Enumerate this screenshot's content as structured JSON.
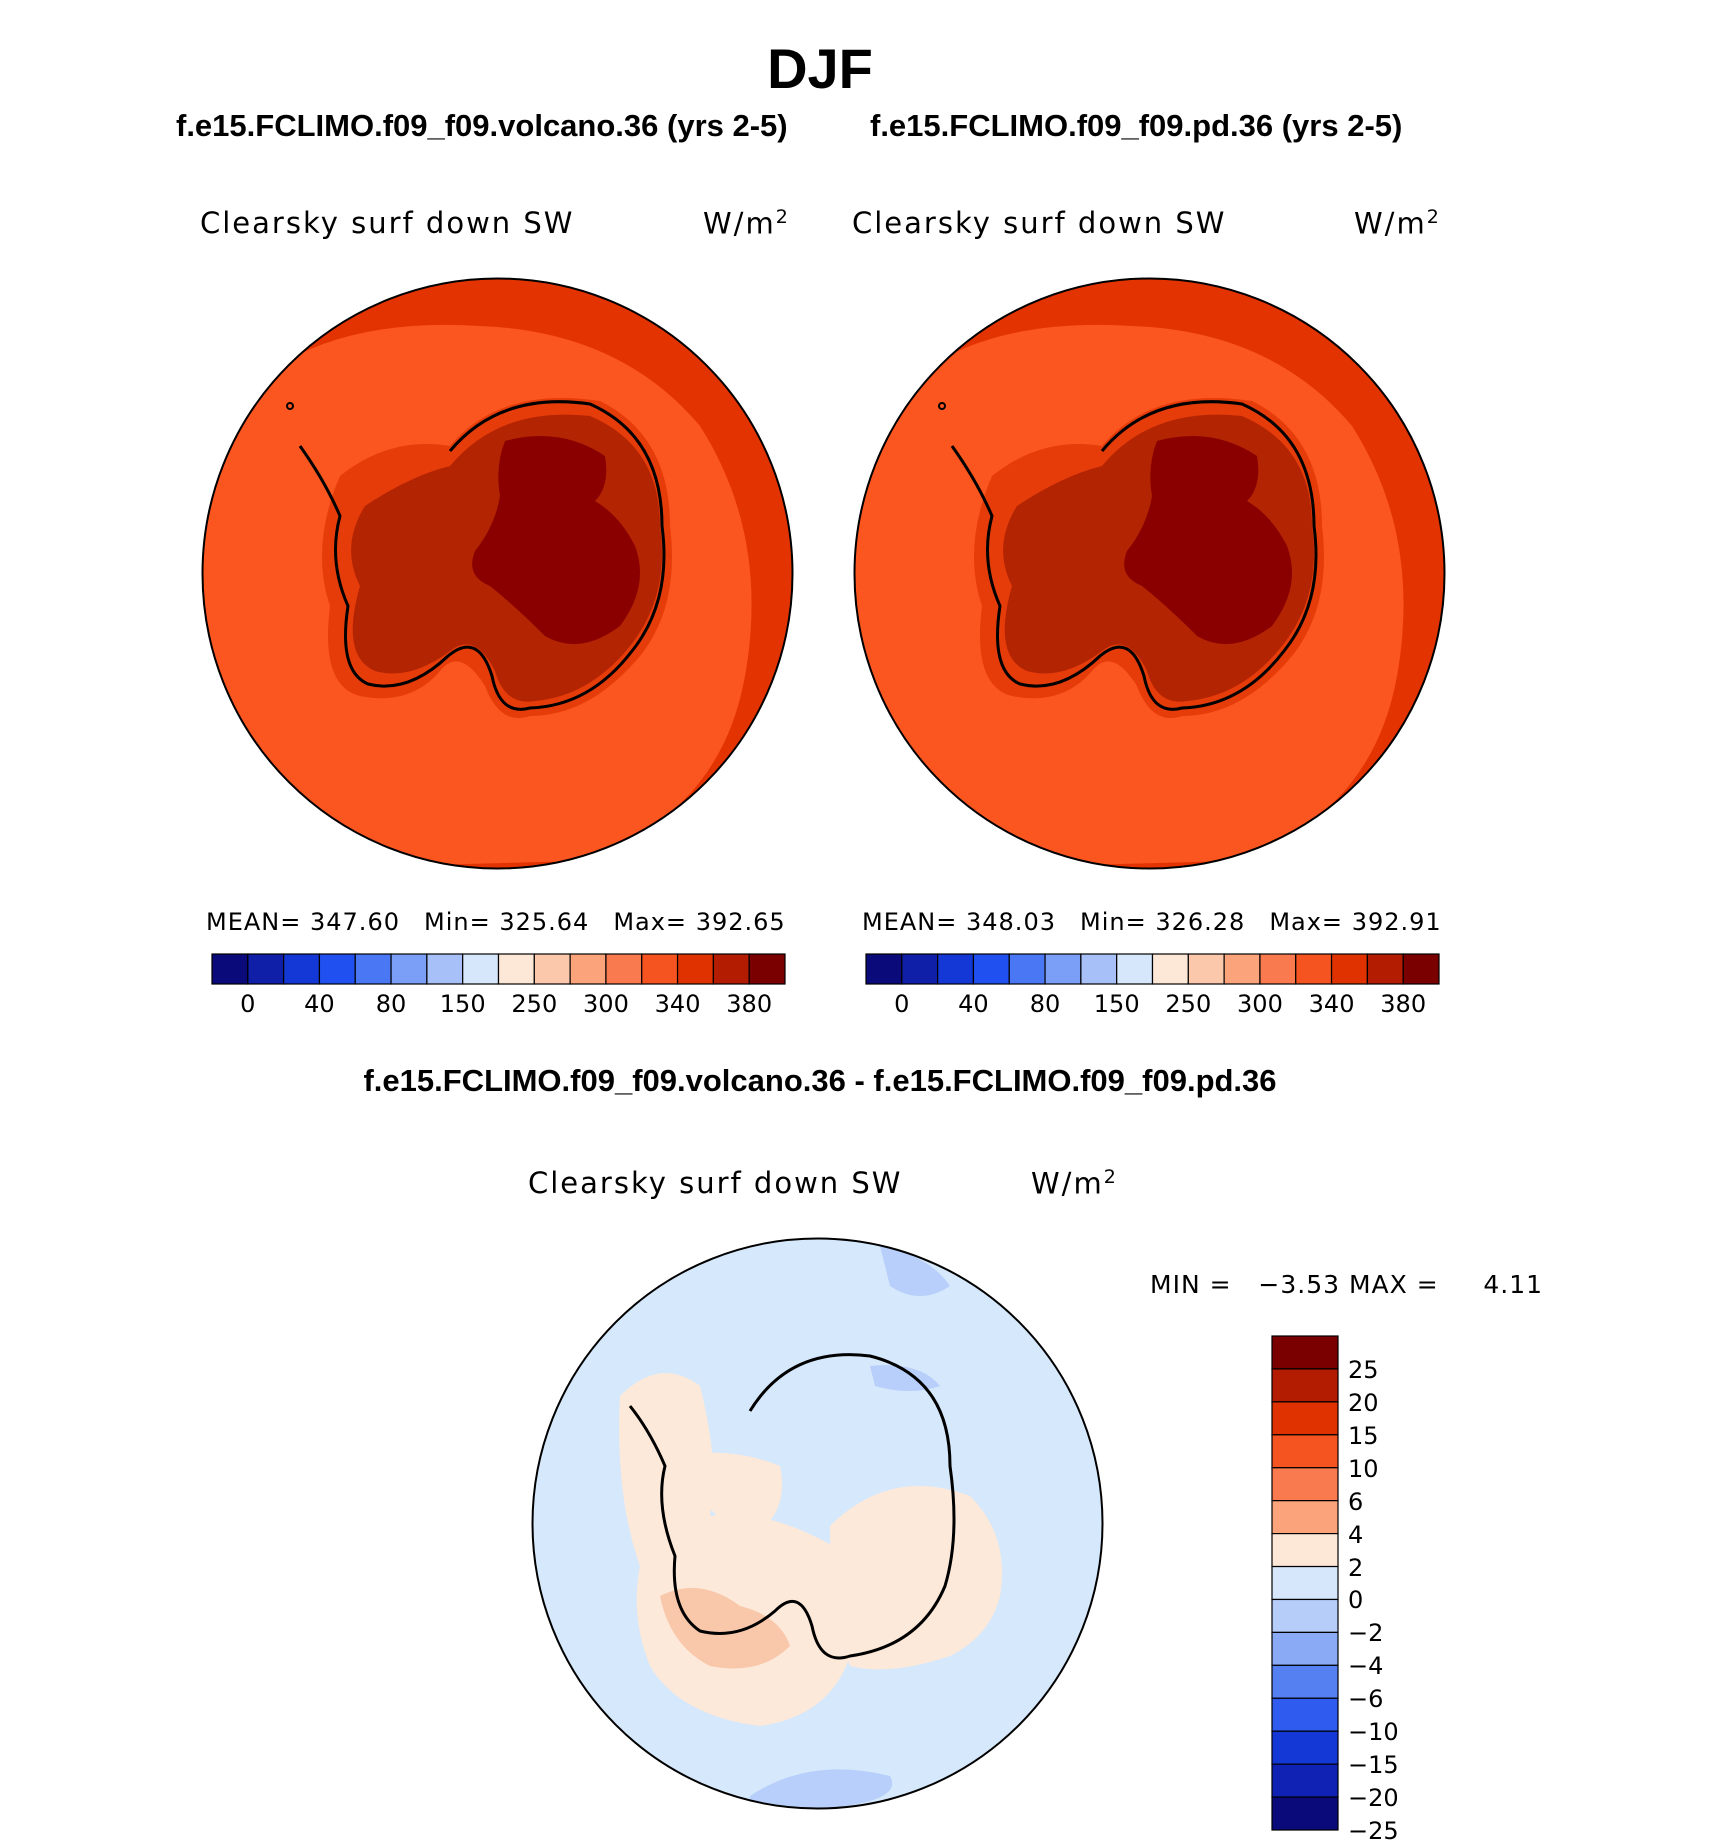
{
  "figure": {
    "season": "DJF",
    "variable": "Clearsky surf down SW",
    "units_base": "W/m",
    "units_exp": "2"
  },
  "panels": [
    {
      "case": "f.e15.FCLIMO.f09_f09.volcano.36 (yrs 2-5)",
      "stats": {
        "mean_label": "MEAN=",
        "mean": "347.60",
        "min_label": "Min=",
        "min": "325.64",
        "max_label": "Max=",
        "max": "392.65"
      }
    },
    {
      "case": "f.e15.FCLIMO.f09_f09.pd.36 (yrs 2-5)",
      "stats": {
        "mean_label": "MEAN=",
        "mean": "348.03",
        "min_label": "Min=",
        "min": "326.28",
        "max_label": "Max=",
        "max": "392.91"
      }
    }
  ],
  "difference": {
    "title": "f.e15.FCLIMO.f09_f09.volcano.36 - f.e15.FCLIMO.f09_f09.pd.36",
    "min_label": "MIN =",
    "min": "−3.53",
    "max_label": "MAX =",
    "max": "4.11"
  },
  "colorbar_main": {
    "colors": [
      "#0a0a7a",
      "#0f1fa8",
      "#1438d6",
      "#2050f0",
      "#4a78f5",
      "#7b9ef7",
      "#a8c0f8",
      "#d6e6fb",
      "#fde8d7",
      "#fcc8ac",
      "#fba47c",
      "#f97a4e",
      "#f5531f",
      "#e03200",
      "#b31c00",
      "#7a0000"
    ],
    "tick_labels": [
      "0",
      "40",
      "80",
      "150",
      "250",
      "300",
      "340",
      "380"
    ]
  },
  "colorbar_diff": {
    "colors": [
      "#7a0000",
      "#b31c00",
      "#e03200",
      "#f5531f",
      "#f97a4e",
      "#fba47c",
      "#fde8d7",
      "#d6e6fb",
      "#b6cdf9",
      "#8aaaf6",
      "#5580f2",
      "#2f5cef",
      "#1438d6",
      "#0f22b3",
      "#0a0a7a"
    ],
    "tick_labels": [
      "25",
      "20",
      "15",
      "10",
      "6",
      "4",
      "2",
      "0",
      "−2",
      "−4",
      "−6",
      "−10",
      "−15",
      "−20",
      "−25"
    ]
  },
  "map_colors": {
    "ocean_mid": "#fb5520",
    "outer_ring": "#e33300",
    "coastal": "#e53c0a",
    "ice_margin": "#b22402",
    "plateau": "#8a0000",
    "diff_base": "#d6e8fb",
    "diff_pos": "#fde9d9",
    "diff_pos2": "#f9c7aa",
    "diff_neg": "#b7cffa"
  }
}
